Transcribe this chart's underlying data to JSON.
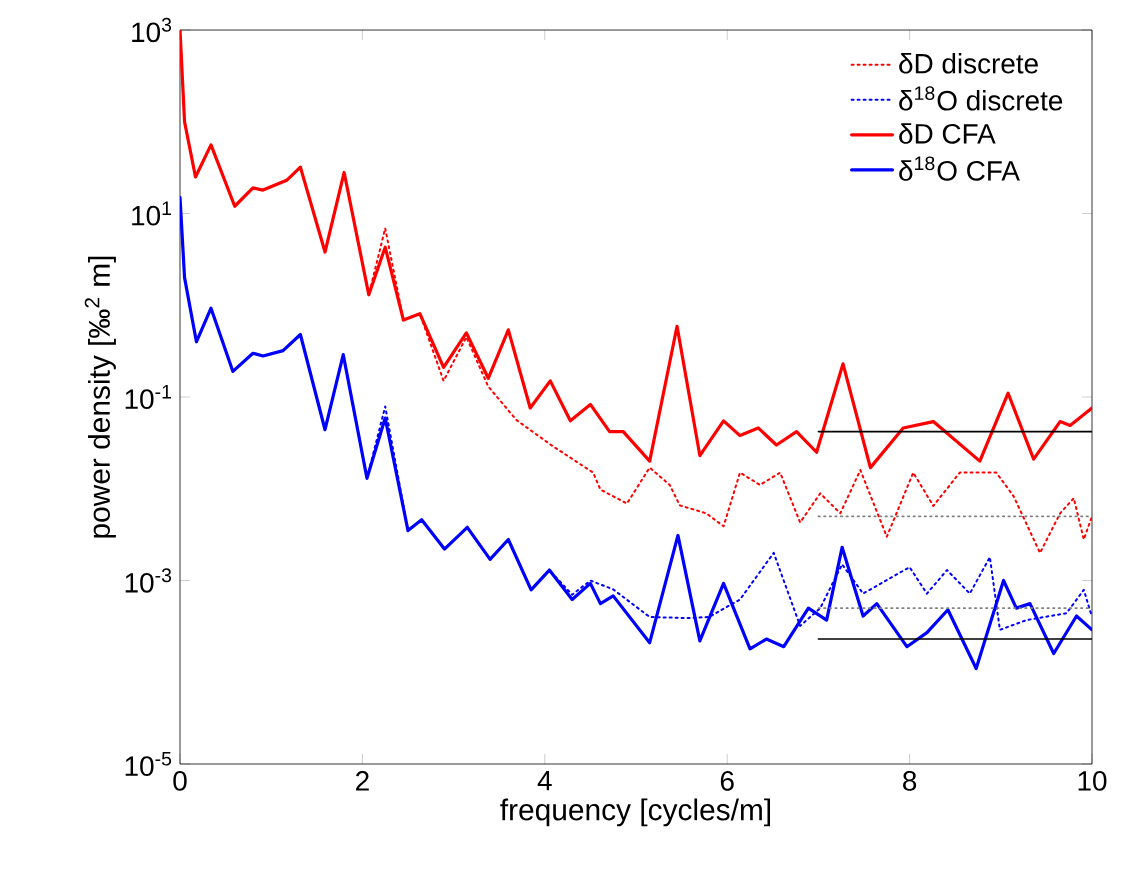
{
  "chart_data": {
    "type": "line",
    "xlabel": "frequency [cycles/m]",
    "ylabel": "power density [‰$^{2}$ m]",
    "xlim": [
      0,
      10
    ],
    "ylim": [
      1e-05,
      1000
    ],
    "log": "y",
    "xticks": [
      0,
      2,
      4,
      6,
      8,
      10
    ],
    "yticks": [
      {
        "value": 1e-05,
        "label": "10$^{-5}$"
      },
      {
        "value": 0.001,
        "label": "10$^{-3}$"
      },
      {
        "value": 0.1,
        "label": "10$^{-1}$"
      },
      {
        "value": 10,
        "label": "10$^{1}$"
      },
      {
        "value": 1000,
        "label": "10$^{3}$"
      }
    ],
    "grid": false,
    "legend": "top right",
    "marker": "none",
    "series": [
      {
        "name": "δD discrete",
        "color": "#ff0000",
        "line_style": "dotted",
        "x": [
          0,
          0.05,
          0.17,
          0.34,
          0.6,
          0.8,
          0.91,
          1.17,
          1.32,
          1.59,
          1.8,
          2.07,
          2.25,
          2.45,
          2.63,
          2.89,
          3.14,
          3.38,
          3.69,
          4.09,
          4.53,
          4.61,
          4.9,
          5.15,
          5.37,
          5.48,
          5.77,
          5.96,
          6.14,
          6.36,
          6.58,
          6.8,
          7.02,
          7.24,
          7.46,
          7.75,
          8.04,
          8.26,
          8.55,
          8.95,
          9.14,
          9.43,
          9.65,
          9.8,
          9.91,
          10
        ],
        "values": [
          1000,
          100,
          25,
          56,
          12,
          19,
          18,
          23,
          32,
          3.8,
          28,
          1.3,
          6.9,
          0.69,
          0.81,
          0.15,
          0.45,
          0.13,
          0.056,
          0.029,
          0.015,
          0.0098,
          0.0069,
          0.017,
          0.011,
          0.0066,
          0.0054,
          0.0039,
          0.015,
          0.011,
          0.015,
          0.0043,
          0.0089,
          0.0054,
          0.016,
          0.003,
          0.015,
          0.0065,
          0.015,
          0.015,
          0.0083,
          0.002,
          0.0054,
          0.0079,
          0.0028,
          0.005
        ]
      },
      {
        "name": "δ$^{18}$O discrete",
        "color": "#0000ff",
        "line_style": "dotted",
        "x": [
          0,
          0.05,
          0.18,
          0.34,
          0.58,
          0.8,
          0.91,
          1.13,
          1.32,
          1.59,
          1.79,
          2.05,
          2.25,
          2.5,
          2.65,
          2.9,
          3.15,
          3.4,
          3.6,
          3.85,
          4.05,
          4.3,
          4.5,
          4.75,
          5.15,
          5.56,
          5.8,
          6.14,
          6.51,
          6.8,
          7.02,
          7.26,
          7.49,
          8.0,
          8.19,
          8.41,
          8.66,
          8.88,
          8.99,
          9.28,
          9.72,
          9.91,
          10
        ],
        "values": [
          15,
          2.0,
          0.4,
          0.93,
          0.19,
          0.3,
          0.28,
          0.32,
          0.48,
          0.044,
          0.29,
          0.013,
          0.079,
          0.0035,
          0.0046,
          0.0022,
          0.0038,
          0.0017,
          0.0028,
          0.00079,
          0.0013,
          0.0007,
          0.001,
          0.0008,
          0.0004,
          0.00039,
          0.0004,
          0.00062,
          0.002,
          0.00032,
          0.0005,
          0.0015,
          0.00072,
          0.0014,
          0.00072,
          0.0013,
          0.00072,
          0.0018,
          0.00029,
          0.00037,
          0.00044,
          0.00079,
          0.0004
        ]
      },
      {
        "name": "δD CFA",
        "color": "#ff0000",
        "line_style": "solid",
        "x": [
          0,
          0.05,
          0.17,
          0.34,
          0.6,
          0.8,
          0.91,
          1.17,
          1.32,
          1.59,
          1.8,
          2.07,
          2.25,
          2.45,
          2.63,
          2.89,
          3.14,
          3.38,
          3.6,
          3.84,
          4.06,
          4.28,
          4.5,
          4.71,
          4.86,
          5.15,
          5.45,
          5.7,
          5.96,
          6.14,
          6.34,
          6.54,
          6.76,
          6.98,
          7.27,
          7.57,
          7.93,
          8.26,
          8.77,
          9.08,
          9.36,
          9.65,
          9.76,
          10
        ],
        "values": [
          1000,
          100,
          25,
          56,
          12,
          19,
          18,
          23,
          32,
          3.8,
          28,
          1.3,
          4.3,
          0.69,
          0.81,
          0.21,
          0.5,
          0.16,
          0.54,
          0.076,
          0.15,
          0.055,
          0.083,
          0.042,
          0.042,
          0.02,
          0.59,
          0.023,
          0.055,
          0.038,
          0.046,
          0.03,
          0.042,
          0.025,
          0.23,
          0.017,
          0.046,
          0.054,
          0.02,
          0.11,
          0.021,
          0.054,
          0.049,
          0.076
        ]
      },
      {
        "name": "δ$^{18}$O CFA",
        "color": "#0000ff",
        "line_style": "solid",
        "x": [
          0,
          0.05,
          0.18,
          0.34,
          0.58,
          0.8,
          0.91,
          1.13,
          1.32,
          1.59,
          1.79,
          2.05,
          2.25,
          2.5,
          2.65,
          2.9,
          3.15,
          3.4,
          3.6,
          3.85,
          4.05,
          4.3,
          4.5,
          4.61,
          4.75,
          5.15,
          5.46,
          5.7,
          5.96,
          6.25,
          6.43,
          6.62,
          6.89,
          7.09,
          7.26,
          7.49,
          7.64,
          7.97,
          8.19,
          8.42,
          8.73,
          9.03,
          9.17,
          9.32,
          9.58,
          9.83,
          10
        ],
        "values": [
          15,
          2.0,
          0.4,
          0.93,
          0.19,
          0.3,
          0.28,
          0.32,
          0.48,
          0.044,
          0.29,
          0.013,
          0.059,
          0.0035,
          0.0046,
          0.0022,
          0.0038,
          0.0017,
          0.0028,
          0.00079,
          0.0013,
          0.00062,
          0.00093,
          0.00056,
          0.00068,
          0.00021,
          0.0031,
          0.00022,
          0.00093,
          0.00018,
          0.00023,
          0.00019,
          0.0005,
          0.00037,
          0.0023,
          0.00041,
          0.00056,
          0.00019,
          0.00027,
          0.00048,
          0.00011,
          0.001,
          0.0005,
          0.00056,
          0.00016,
          0.00041,
          0.00029
        ]
      },
      {
        "color": "#000000",
        "line_style": "solid",
        "x": [
          7,
          10
        ],
        "values": [
          0.042,
          0.042
        ]
      },
      {
        "color": "#000000",
        "line_style": "solid",
        "x": [
          7,
          10
        ],
        "values": [
          0.00023,
          0.00023
        ]
      },
      {
        "color": "#808080",
        "line_style": "dotted",
        "x": [
          7,
          10
        ],
        "values": [
          0.005,
          0.005
        ]
      },
      {
        "color": "#808080",
        "line_style": "dotted",
        "x": [
          7,
          10
        ],
        "values": [
          0.0005,
          0.0005
        ]
      }
    ]
  }
}
